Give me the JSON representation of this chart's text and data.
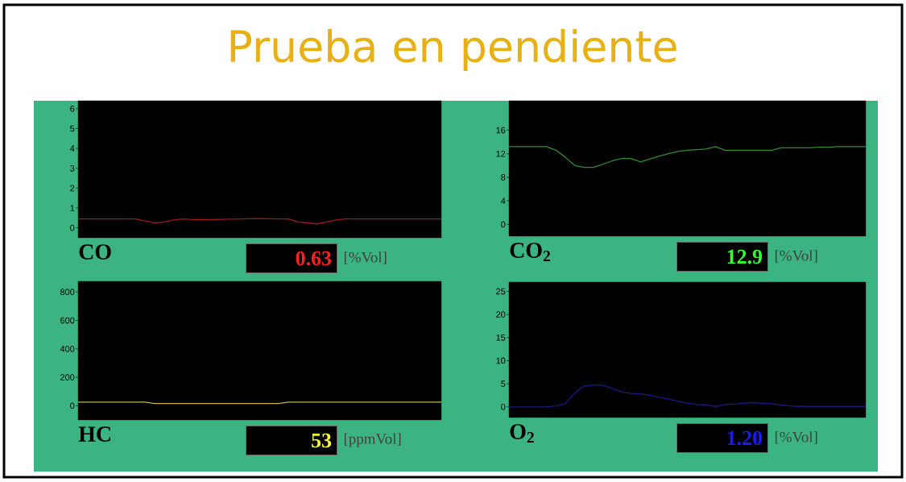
{
  "chart_data": [
    {
      "type": "line",
      "title": "Prueba en pendiente",
      "xlabel": "CO",
      "categories": [
        null,
        null,
        null,
        null,
        null,
        null,
        null,
        null,
        null,
        null,
        null,
        null,
        null,
        null,
        null,
        null,
        null,
        null,
        null,
        null,
        null,
        null,
        null,
        null,
        null,
        null,
        null,
        null,
        null,
        null,
        null,
        null,
        null,
        null,
        null,
        null,
        null,
        null,
        null
      ],
      "series": [
        {
          "color": "#a01818",
          "values": [
            0.45,
            0.45,
            0.45,
            0.45,
            0.45,
            0.45,
            0.45,
            0.35,
            0.25,
            0.3,
            0.4,
            0.45,
            0.42,
            0.42,
            0.42,
            0.43,
            0.44,
            0.45,
            0.46,
            0.47,
            0.46,
            0.45,
            0.45,
            0.3,
            0.25,
            0.2,
            0.3,
            0.4,
            0.45,
            0.45,
            0.45,
            0.45,
            0.45,
            0.45,
            0.45,
            0.45,
            0.45,
            0.45,
            0.45
          ]
        }
      ],
      "ylim": [
        -0.5,
        6.4
      ],
      "yticks": [
        0,
        1,
        2,
        3,
        4,
        5,
        6
      ],
      "annotations": [
        "0.63",
        "[%Vol]"
      ]
    },
    {
      "type": "line",
      "xlabel": "CO$_{2}$",
      "categories": [
        null,
        null,
        null,
        null,
        null,
        null,
        null,
        null,
        null,
        null,
        null,
        null,
        null,
        null,
        null,
        null,
        null,
        null,
        null,
        null,
        null,
        null,
        null,
        null,
        null,
        null,
        null,
        null,
        null,
        null,
        null,
        null,
        null,
        null,
        null,
        null,
        null,
        null,
        null
      ],
      "series": [
        {
          "color": "#2e8b2e",
          "values": [
            13.2,
            13.2,
            13.2,
            13.2,
            13.2,
            12.6,
            11.4,
            10,
            9.7,
            9.7,
            10.2,
            10.8,
            11.2,
            11.2,
            10.6,
            11.1,
            11.6,
            12,
            12.4,
            12.6,
            12.7,
            12.8,
            13.2,
            12.6,
            12.6,
            12.6,
            12.6,
            12.6,
            12.6,
            13,
            13,
            13,
            13,
            13.1,
            13.1,
            13.2,
            13.2,
            13.2,
            13.2
          ]
        }
      ],
      "ylim": [
        -2,
        21
      ],
      "yticks": [
        0,
        4,
        8,
        12,
        16
      ],
      "annotations": [
        "12.9",
        "[%Vol]"
      ]
    },
    {
      "type": "line",
      "xlabel": "HC",
      "categories": [
        null,
        null,
        null,
        null,
        null,
        null,
        null,
        null,
        null,
        null,
        null,
        null,
        null,
        null,
        null,
        null,
        null,
        null,
        null,
        null,
        null,
        null,
        null,
        null,
        null,
        null,
        null,
        null,
        null,
        null,
        null,
        null,
        null,
        null,
        null,
        null,
        null,
        null,
        null
      ],
      "series": [
        {
          "color": "#c8b43c",
          "values": [
            25,
            25,
            25,
            25,
            25,
            25,
            25,
            25,
            15,
            15,
            15,
            15,
            15,
            15,
            15,
            15,
            15,
            15,
            15,
            15,
            15,
            15,
            25,
            25,
            25,
            25,
            25,
            25,
            25,
            25,
            25,
            25,
            25,
            25,
            25,
            25,
            25,
            25,
            25
          ]
        }
      ],
      "ylim": [
        -100,
        875
      ],
      "yticks": [
        0,
        200,
        400,
        600,
        800
      ],
      "annotations": [
        "53",
        "[ppmVol]"
      ]
    },
    {
      "type": "line",
      "xlabel": "O$_{2}$",
      "categories": [
        null,
        null,
        null,
        null,
        null,
        null,
        null,
        null,
        null,
        null,
        null,
        null,
        null,
        null,
        null,
        null,
        null,
        null,
        null,
        null,
        null,
        null,
        null,
        null,
        null,
        null,
        null,
        null,
        null,
        null,
        null,
        null,
        null,
        null,
        null,
        null,
        null,
        null,
        null
      ],
      "series": [
        {
          "color": "#1a1a80",
          "values": [
            0,
            0,
            0,
            0,
            0,
            0.2,
            0.7,
            3,
            4.5,
            4.7,
            4.7,
            4,
            3.2,
            2.9,
            2.8,
            2.5,
            2.1,
            1.7,
            1.2,
            0.8,
            0.5,
            0.4,
            0.1,
            0.5,
            0.6,
            0.8,
            0.9,
            0.8,
            0.7,
            0.4,
            0.2,
            0.1,
            0.1,
            0.1,
            0.1,
            0.1,
            0.1,
            0.1,
            0.1
          ]
        }
      ],
      "ylim": [
        -2.3,
        27
      ],
      "yticks": [
        0,
        5,
        10,
        15,
        20,
        25
      ],
      "annotations": [
        "1.20",
        "[%Vol]"
      ]
    }
  ]
}
